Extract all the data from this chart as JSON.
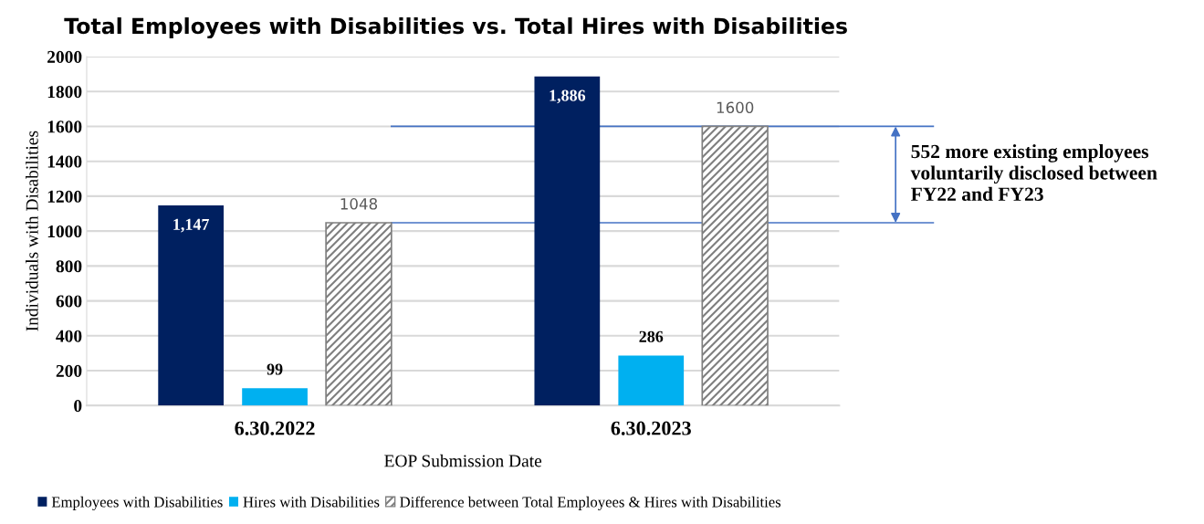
{
  "chart_data": {
    "type": "bar",
    "title": "Total Employees with Disabilities vs. Total Hires with Disabilities",
    "xlabel": "EOP Submission Date",
    "ylabel": "Individuals with Disabilities",
    "categories": [
      "6.30.2022",
      "6.30.2023"
    ],
    "series": [
      {
        "name": "Employees with Disabilities",
        "color": "#002060",
        "values": [
          1147,
          1886
        ],
        "value_labels": [
          "1,147",
          "1,886"
        ]
      },
      {
        "name": "Hires with Disabilities",
        "color": "#00b0f0",
        "values": [
          99,
          286
        ],
        "value_labels": [
          "99",
          "286"
        ]
      },
      {
        "name": "Difference between Total Employees & Hires with Disabilities",
        "color": "#7f7f7f",
        "values": [
          1048,
          1600
        ],
        "value_labels": [
          "1048",
          "1600"
        ]
      }
    ],
    "ylim": [
      0,
      2000
    ],
    "yticks": [
      0,
      200,
      400,
      600,
      800,
      1000,
      1200,
      1400,
      1600,
      1800,
      2000
    ],
    "grid": "y",
    "legend": "bottom left",
    "ref_lines": [
      {
        "axis": "y",
        "value": 1048,
        "color": "#4472c4"
      },
      {
        "axis": "y",
        "value": 1600,
        "color": "#4472c4"
      }
    ],
    "annotations": [
      "552 more existing employees\nvoluntarily disclosed between\nFY22 and FY23"
    ]
  }
}
